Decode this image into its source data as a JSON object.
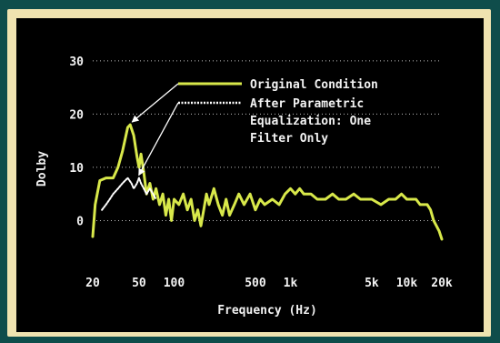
{
  "chart_data": {
    "type": "line",
    "title": "",
    "xlabel": "Frequency (Hz)",
    "ylabel": "Dolby",
    "x_scale": "log",
    "xlim": [
      20,
      20000
    ],
    "ylim": [
      -3,
      31
    ],
    "xticks": [
      20,
      50,
      100,
      500,
      1000,
      5000,
      10000,
      20000
    ],
    "xtick_labels": [
      "20",
      "50",
      "100",
      "500",
      "1k",
      "5k",
      "10k",
      "20k"
    ],
    "yticks": [
      0,
      10,
      20,
      30
    ],
    "ytick_labels": [
      "0",
      "10",
      "20",
      "30"
    ],
    "grid": "horizontal dotted",
    "legend_position": "top-right",
    "series": [
      {
        "name": "Original Condition",
        "color": "#d8e84a",
        "style": "solid",
        "points": [
          [
            20,
            -3
          ],
          [
            21,
            3
          ],
          [
            23,
            7.5
          ],
          [
            26,
            8
          ],
          [
            30,
            8
          ],
          [
            33,
            10
          ],
          [
            36,
            13
          ],
          [
            40,
            17.5
          ],
          [
            42,
            18
          ],
          [
            45,
            16
          ],
          [
            48,
            12
          ],
          [
            50,
            10
          ],
          [
            52,
            12.5
          ],
          [
            55,
            9
          ],
          [
            58,
            5
          ],
          [
            62,
            7
          ],
          [
            66,
            4
          ],
          [
            70,
            6
          ],
          [
            75,
            3
          ],
          [
            80,
            5
          ],
          [
            85,
            1
          ],
          [
            90,
            4
          ],
          [
            95,
            0
          ],
          [
            100,
            4
          ],
          [
            110,
            3
          ],
          [
            120,
            5
          ],
          [
            130,
            2
          ],
          [
            140,
            4
          ],
          [
            150,
            0
          ],
          [
            160,
            2
          ],
          [
            170,
            -1
          ],
          [
            180,
            2
          ],
          [
            190,
            5
          ],
          [
            200,
            3
          ],
          [
            220,
            6
          ],
          [
            240,
            3
          ],
          [
            260,
            1
          ],
          [
            280,
            4
          ],
          [
            300,
            1
          ],
          [
            330,
            3
          ],
          [
            360,
            5
          ],
          [
            400,
            3
          ],
          [
            450,
            5
          ],
          [
            500,
            2
          ],
          [
            550,
            4
          ],
          [
            600,
            3
          ],
          [
            700,
            4
          ],
          [
            800,
            3
          ],
          [
            900,
            5
          ],
          [
            1000,
            6
          ],
          [
            1100,
            5
          ],
          [
            1200,
            6
          ],
          [
            1300,
            5
          ],
          [
            1500,
            5
          ],
          [
            1700,
            4
          ],
          [
            2000,
            4
          ],
          [
            2300,
            5
          ],
          [
            2600,
            4
          ],
          [
            3000,
            4
          ],
          [
            3500,
            5
          ],
          [
            4000,
            4
          ],
          [
            5000,
            4
          ],
          [
            6000,
            3
          ],
          [
            7000,
            4
          ],
          [
            8000,
            4
          ],
          [
            9000,
            5
          ],
          [
            10000,
            4
          ],
          [
            11000,
            4
          ],
          [
            12000,
            4
          ],
          [
            13000,
            3
          ],
          [
            14000,
            3
          ],
          [
            15000,
            3
          ],
          [
            16000,
            2
          ],
          [
            17000,
            0
          ],
          [
            18000,
            -1
          ],
          [
            19000,
            -2
          ],
          [
            20000,
            -3.5
          ]
        ]
      },
      {
        "name": "After Parametric Equalization: One Filter Only",
        "color": "#ffffff",
        "style": "dotted",
        "points": [
          [
            24,
            2
          ],
          [
            26,
            3
          ],
          [
            28,
            4
          ],
          [
            30,
            5
          ],
          [
            33,
            6
          ],
          [
            36,
            7
          ],
          [
            40,
            8
          ],
          [
            43,
            7
          ],
          [
            45,
            6
          ],
          [
            48,
            7
          ],
          [
            50,
            8
          ],
          [
            52,
            7
          ],
          [
            55,
            6
          ],
          [
            58,
            5
          ],
          [
            62,
            6
          ],
          [
            66,
            5
          ],
          [
            70,
            4
          ]
        ]
      }
    ],
    "legend": [
      {
        "label": "Original Condition",
        "style": "solid",
        "color": "#d8e84a"
      },
      {
        "label": "After Parametric\nEqualization: One\nFilter Only",
        "style": "dotted",
        "color": "#ffffff"
      }
    ],
    "annotations": [
      {
        "type": "arrow",
        "from_label": "Original Condition",
        "to_x": 42,
        "to_y": 18
      },
      {
        "type": "arrow",
        "from_label": "After Parametric Equalization: One Filter Only",
        "to_x": 48,
        "to_y": 8
      }
    ]
  }
}
